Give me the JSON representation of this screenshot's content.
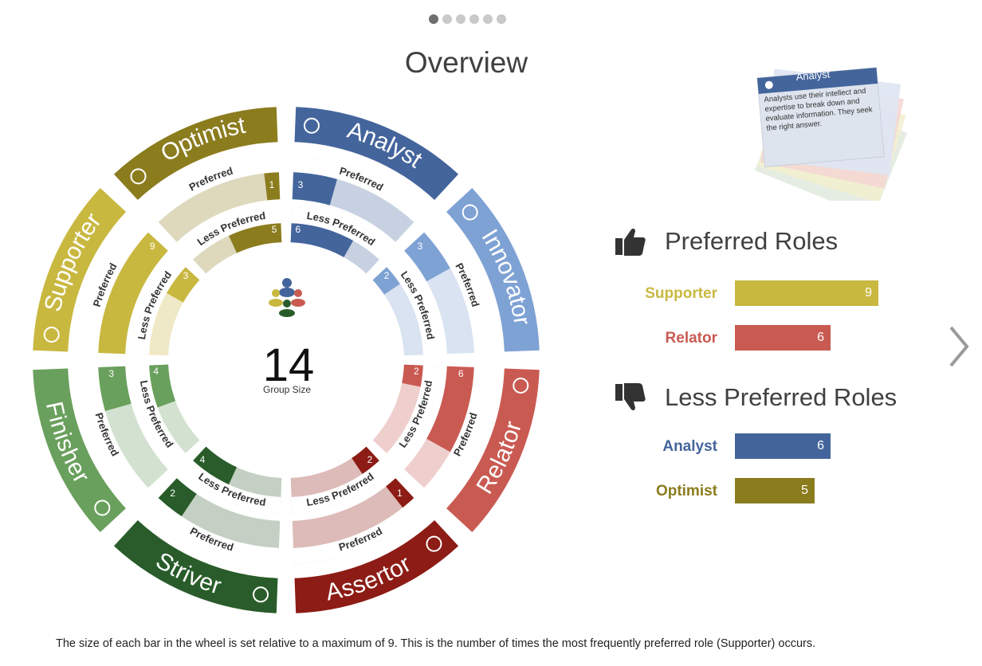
{
  "pager": {
    "count": 6,
    "active": 0
  },
  "page_title": "Overview",
  "center": {
    "value": "14",
    "label": "Group Size"
  },
  "wheel": {
    "max": 9,
    "roles": [
      {
        "name": "Analyst",
        "color": "#44659c",
        "light": "#c7d1e1",
        "preferred": 3,
        "less": 6,
        "icon": "pie-chart-icon"
      },
      {
        "name": "Innovator",
        "color": "#7fa2d4",
        "light": "#d9e3f2",
        "preferred": 3,
        "less": 2,
        "icon": "lightbulb-icon"
      },
      {
        "name": "Relator",
        "color": "#c95a52",
        "light": "#efcfcd",
        "preferred": 6,
        "less": 2,
        "icon": "network-icon"
      },
      {
        "name": "Assertor",
        "color": "#8c1c15",
        "light": "#ddbbb9",
        "preferred": 1,
        "less": 2,
        "icon": "hand-icon"
      },
      {
        "name": "Striver",
        "color": "#295c2a",
        "light": "#c3d0c3",
        "preferred": 2,
        "less": 4,
        "icon": "mountain-icon"
      },
      {
        "name": "Finisher",
        "color": "#6aa05d",
        "light": "#d3e2d0",
        "preferred": 3,
        "less": 4,
        "icon": "stopwatch-icon"
      },
      {
        "name": "Supporter",
        "color": "#c9b840",
        "light": "#efe9c7",
        "preferred": 9,
        "less": 3,
        "icon": "handshake-icon"
      },
      {
        "name": "Optimist",
        "color": "#8b7c1e",
        "light": "#ded8bd",
        "preferred": 1,
        "less": 5,
        "icon": "checkmark-badge-icon"
      }
    ],
    "preferred_label": "Preferred",
    "less_label": "Less Preferred"
  },
  "card": {
    "title": "Analyst",
    "text_lines": [
      "Analysts use their intellect and",
      "expertise to break down and",
      "evaluate information. They seek",
      "the right answer."
    ],
    "icon": "pie-chart-icon"
  },
  "preferred_section": {
    "title": "Preferred Roles",
    "icon": "thumbs-up-icon",
    "items": [
      {
        "name": "Supporter",
        "value": 9,
        "color": "#c9b840",
        "text": "9"
      },
      {
        "name": "Relator",
        "value": 6,
        "color": "#c95a52",
        "text": "6"
      }
    ]
  },
  "less_section": {
    "title": "Less Preferred Roles",
    "icon": "thumbs-down-icon",
    "items": [
      {
        "name": "Analyst",
        "value": 6,
        "color": "#44659c",
        "text": "6"
      },
      {
        "name": "Optimist",
        "value": 5,
        "color": "#8b7c1e",
        "text": "5"
      }
    ]
  },
  "footer": "The size of each bar in the wheel is set relative to a maximum of 9. This is the number of times the most frequently preferred role (Supporter) occurs."
}
